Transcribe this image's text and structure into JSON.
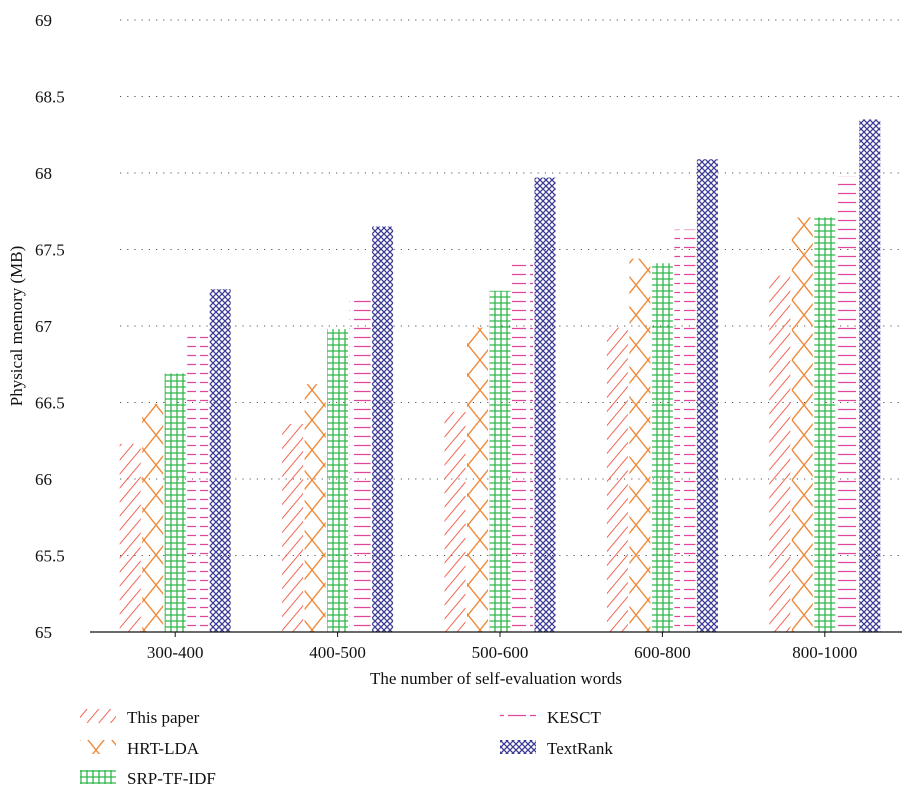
{
  "chart_data": {
    "type": "bar",
    "title": "",
    "xlabel": "The number of self-evaluation words",
    "ylabel": "Physical memory (MB)",
    "ylim": [
      65,
      69
    ],
    "yticks": [
      65,
      65.5,
      66,
      66.5,
      67,
      67.5,
      68,
      68.5,
      69
    ],
    "ytick_labels": [
      "65",
      "65.5",
      "66",
      "66.5",
      "67",
      "67.5",
      "68",
      "68.5",
      "69"
    ],
    "grid": "horizontal dotted",
    "legend_position": "bottom",
    "categories": [
      "300-400",
      "400-500",
      "500-600",
      "600-800",
      "800-1000"
    ],
    "series": [
      {
        "name": "This paper",
        "color": "#f0402a",
        "pattern": "diagonal-lines",
        "values": [
          66.23,
          66.36,
          66.44,
          66.99,
          67.33
        ]
      },
      {
        "name": "HRT-LDA",
        "color": "#f08a3a",
        "pattern": "crosshatch",
        "values": [
          66.49,
          66.62,
          66.99,
          67.44,
          67.71
        ]
      },
      {
        "name": "SRP-TF-IDF",
        "color": "#2fb64a",
        "pattern": "grid",
        "values": [
          66.69,
          66.98,
          67.23,
          67.41,
          67.71
        ]
      },
      {
        "name": "KESCT",
        "color": "#e0479a",
        "pattern": "horizontal-dashes",
        "values": [
          66.95,
          67.18,
          67.41,
          67.63,
          67.98
        ]
      },
      {
        "name": "TextRank",
        "color": "#3b3a93",
        "pattern": "dense-crosshatch",
        "values": [
          67.24,
          67.65,
          67.97,
          68.09,
          68.35
        ]
      }
    ]
  }
}
